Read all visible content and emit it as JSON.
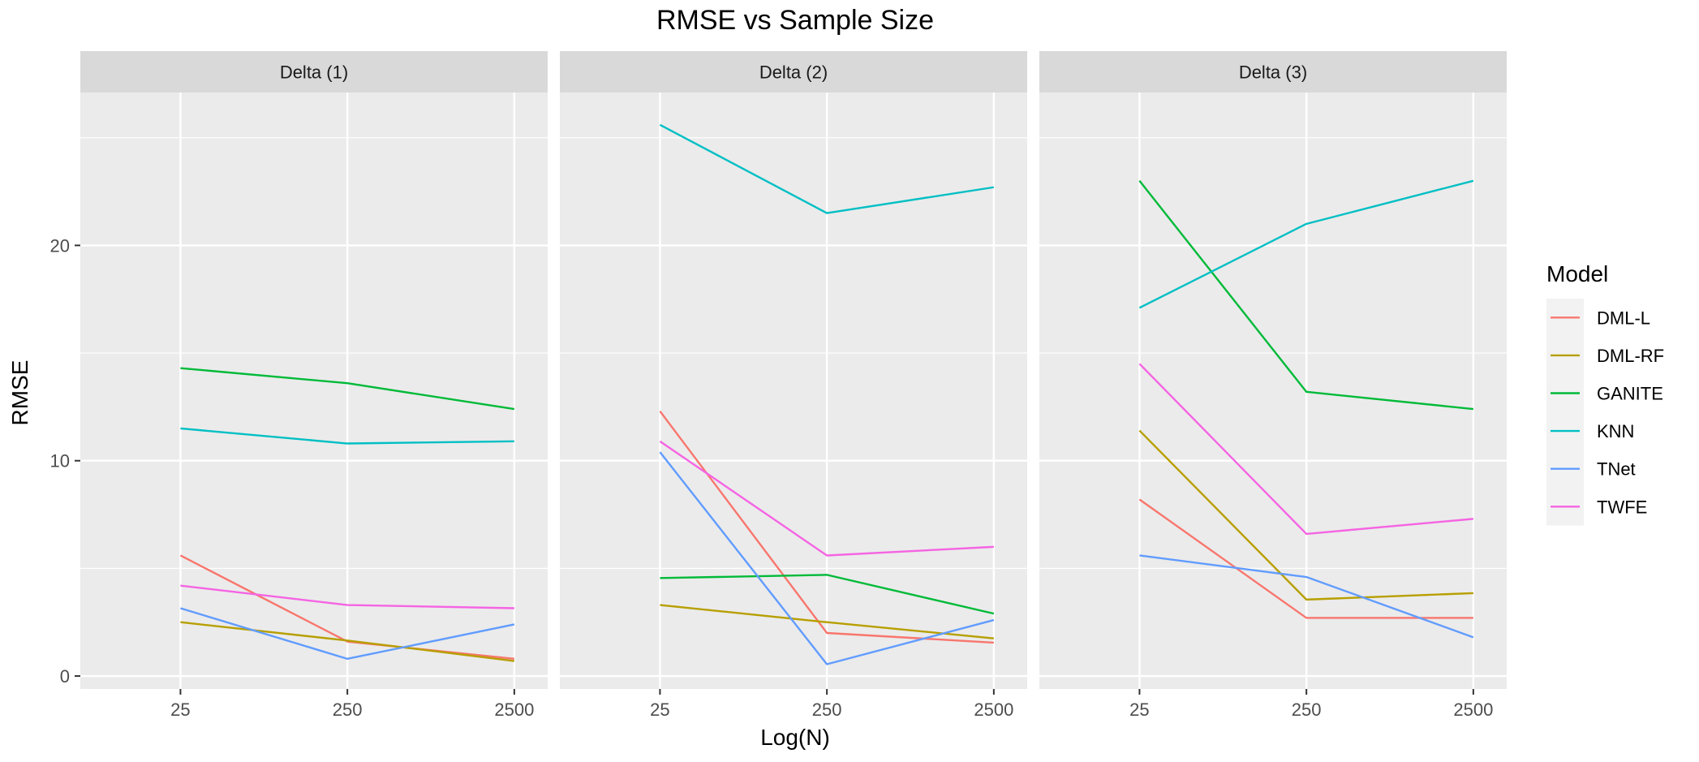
{
  "chart_data": {
    "type": "line",
    "title": "RMSE vs Sample Size",
    "xlabel": "Log(N)",
    "ylabel": "RMSE",
    "categories": [
      "25",
      "250",
      "2500"
    ],
    "ylim": [
      -0.6,
      27.1
    ],
    "yticks": [
      0,
      10,
      20
    ],
    "grid": true,
    "legend": {
      "title": "Model",
      "position": "right",
      "entries": [
        "DML-L",
        "DML-RF",
        "GANITE",
        "KNN",
        "TNet",
        "TWFE"
      ]
    },
    "colors": {
      "DML-L": "#F8766D",
      "DML-RF": "#B79F00",
      "GANITE": "#00BA38",
      "KNN": "#00BFC4",
      "TNet": "#619CFF",
      "TWFE": "#F564E3"
    },
    "panels": [
      {
        "label": "Delta (1)",
        "series": [
          {
            "name": "DML-L",
            "values": [
              5.6,
              1.6,
              0.8
            ]
          },
          {
            "name": "DML-RF",
            "values": [
              2.5,
              1.65,
              0.7
            ]
          },
          {
            "name": "GANITE",
            "values": [
              14.3,
              13.6,
              12.4
            ]
          },
          {
            "name": "KNN",
            "values": [
              11.5,
              10.8,
              10.9
            ]
          },
          {
            "name": "TNet",
            "values": [
              3.15,
              0.8,
              2.4
            ]
          },
          {
            "name": "TWFE",
            "values": [
              4.2,
              3.3,
              3.15
            ]
          }
        ]
      },
      {
        "label": "Delta (2)",
        "series": [
          {
            "name": "DML-L",
            "values": [
              12.3,
              2.0,
              1.55
            ]
          },
          {
            "name": "DML-RF",
            "values": [
              3.3,
              2.5,
              1.75
            ]
          },
          {
            "name": "GANITE",
            "values": [
              4.55,
              4.7,
              2.9
            ]
          },
          {
            "name": "KNN",
            "values": [
              25.6,
              21.5,
              22.7
            ]
          },
          {
            "name": "TNet",
            "values": [
              10.4,
              0.55,
              2.6
            ]
          },
          {
            "name": "TWFE",
            "values": [
              10.9,
              5.6,
              6.0
            ]
          }
        ]
      },
      {
        "label": "Delta (3)",
        "series": [
          {
            "name": "DML-L",
            "values": [
              8.2,
              2.7,
              2.7
            ]
          },
          {
            "name": "DML-RF",
            "values": [
              11.4,
              3.55,
              3.85
            ]
          },
          {
            "name": "GANITE",
            "values": [
              23.0,
              13.2,
              12.4
            ]
          },
          {
            "name": "KNN",
            "values": [
              17.1,
              21.0,
              23.0
            ]
          },
          {
            "name": "TNet",
            "values": [
              5.6,
              4.6,
              1.8
            ]
          },
          {
            "name": "TWFE",
            "values": [
              14.5,
              6.6,
              7.3
            ]
          }
        ]
      }
    ]
  }
}
